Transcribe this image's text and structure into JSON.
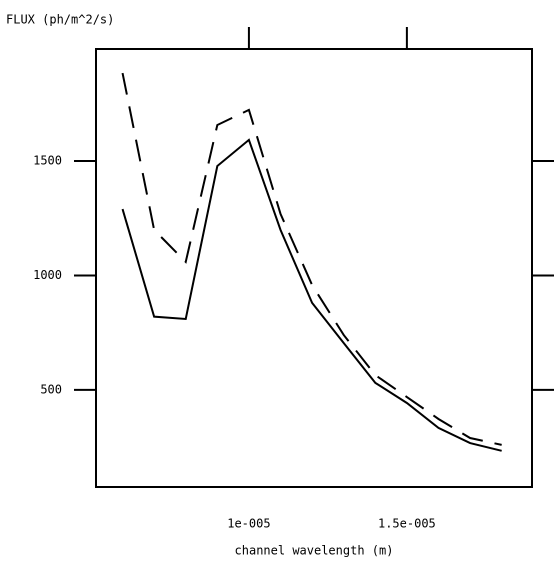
{
  "chart_data": {
    "type": "line",
    "ylabel": "FLUX (ph/m^2/s)",
    "xlabel": "channel wavelength (m)",
    "x": [
      6e-06,
      7e-06,
      8e-06,
      9e-06,
      1e-05,
      1.1e-05,
      1.2e-05,
      1.3e-05,
      1.4e-05,
      1.5e-05,
      1.6e-05,
      1.7e-05,
      1.8e-05
    ],
    "series": [
      {
        "color": "#000000",
        "dashed": false,
        "values": [
          1290,
          820,
          810,
          1478,
          1592,
          1199,
          880,
          705,
          531,
          443,
          334,
          268,
          234
        ]
      },
      {
        "color": "#000000",
        "dashed": true,
        "values": [
          1884,
          1199,
          1059,
          1657,
          1723,
          1269,
          958,
          740,
          565,
          469,
          373,
          290,
          260
        ]
      }
    ],
    "xlim": [
      5.16e-06,
      1.896e-05
    ],
    "ylim": [
      76,
      1989
    ],
    "xticks": [
      {
        "value": 1e-05,
        "label": "1e-005"
      },
      {
        "value": 1.5e-05,
        "label": "1.5e-005"
      }
    ],
    "yticks": [
      500,
      1000,
      1500
    ]
  }
}
